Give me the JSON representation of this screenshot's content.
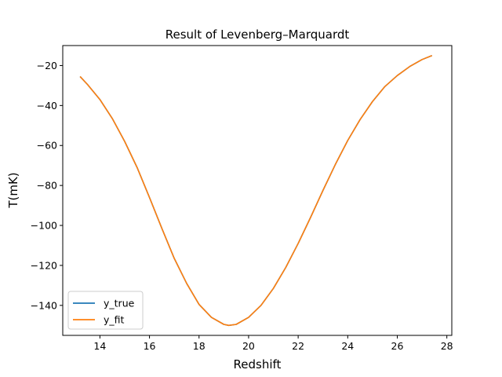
{
  "chart_data": {
    "type": "line",
    "title": "Result of Levenberg–Marquardt",
    "xlabel": "Redshift",
    "ylabel": "T(mK)",
    "xlim": [
      12.5,
      28.2
    ],
    "ylim": [
      -155,
      -10
    ],
    "xticks": [
      14,
      16,
      18,
      20,
      22,
      24,
      26,
      28
    ],
    "yticks": [
      -140,
      -120,
      -100,
      -80,
      -60,
      -40,
      -20
    ],
    "grid": false,
    "legend_position": "lower-left",
    "series": [
      {
        "name": "y_true",
        "color": "#1f77b4",
        "x": [
          13.2,
          13.5,
          14.0,
          14.5,
          15.0,
          15.5,
          16.0,
          16.5,
          17.0,
          17.5,
          18.0,
          18.5,
          19.0,
          19.2,
          19.5,
          20.0,
          20.5,
          21.0,
          21.5,
          22.0,
          22.5,
          23.0,
          23.5,
          24.0,
          24.5,
          25.0,
          25.5,
          26.0,
          26.5,
          27.0,
          27.4
        ],
        "y": [
          -25.5,
          -29.5,
          -37.0,
          -46.5,
          -58.0,
          -71.0,
          -86.0,
          -101.5,
          -116.5,
          -129.0,
          -139.5,
          -146.0,
          -149.5,
          -150.0,
          -149.5,
          -146.0,
          -140.0,
          -131.5,
          -121.0,
          -109.0,
          -96.0,
          -82.5,
          -69.5,
          -57.5,
          -47.0,
          -38.0,
          -30.5,
          -25.0,
          -20.5,
          -17.0,
          -15.0
        ]
      },
      {
        "name": "y_fit",
        "color": "#ff7f0e",
        "x": [
          13.2,
          13.5,
          14.0,
          14.5,
          15.0,
          15.5,
          16.0,
          16.5,
          17.0,
          17.5,
          18.0,
          18.5,
          19.0,
          19.2,
          19.5,
          20.0,
          20.5,
          21.0,
          21.5,
          22.0,
          22.5,
          23.0,
          23.5,
          24.0,
          24.5,
          25.0,
          25.5,
          26.0,
          26.5,
          27.0,
          27.4
        ],
        "y": [
          -25.5,
          -29.5,
          -37.0,
          -46.5,
          -58.0,
          -71.0,
          -86.0,
          -101.5,
          -116.5,
          -129.0,
          -139.5,
          -146.0,
          -149.5,
          -150.0,
          -149.5,
          -146.0,
          -140.0,
          -131.5,
          -121.0,
          -109.0,
          -96.0,
          -82.5,
          -69.5,
          -57.5,
          -47.0,
          -38.0,
          -30.5,
          -25.0,
          -20.5,
          -17.0,
          -15.0
        ]
      }
    ]
  }
}
